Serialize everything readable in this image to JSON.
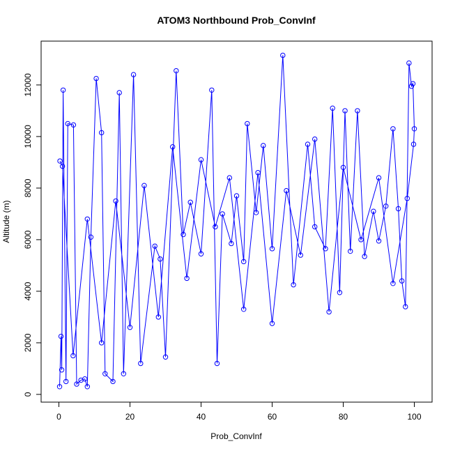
{
  "chart_data": {
    "type": "line",
    "title": "ATOM3 Northbound Prob_ConvInf",
    "xlabel": "Prob_ConvInf",
    "ylabel": "Altitude (m)",
    "xlim": [
      -5,
      105
    ],
    "ylim": [
      -300,
      13700
    ],
    "xticks": [
      0,
      20,
      40,
      60,
      80,
      100
    ],
    "yticks": [
      0,
      2000,
      4000,
      6000,
      8000,
      10000,
      12000
    ],
    "grid": false,
    "legend": "none",
    "series_color": "#0000ff",
    "series": [
      {
        "x": [
          0.2,
          0.6,
          0.8,
          1.2,
          2.0,
          2.5,
          4.1,
          5.0,
          6.2,
          7.3,
          8.0,
          9.0,
          10.5,
          12.0,
          13.0,
          15.2,
          17.0,
          18.2,
          21.0,
          23.0,
          27.0,
          28.5,
          30.0,
          33.0,
          35.0,
          37.0,
          40.0,
          43.0,
          44.5,
          46.0,
          48.5,
          50.0,
          52.0,
          53.0,
          55.5,
          57.5,
          60.0,
          63.0,
          66.0,
          70.0,
          72.0,
          75.0,
          77.0,
          79.0,
          80.5,
          82.0,
          84.0,
          86.0,
          88.5,
          90.0,
          92.0,
          94.0,
          95.5,
          96.5,
          97.5,
          98.5,
          99.2,
          99.6,
          100.0,
          99.8,
          98.0,
          94.0,
          90.0,
          85.0,
          80.0,
          76.0,
          72.0,
          68.0,
          64.0,
          60.0,
          56.0,
          52.0,
          48.0,
          44.0,
          40.0,
          36.0,
          32.0,
          28.0,
          24.0,
          20.0,
          16.0,
          12.0,
          8.0,
          4.0,
          1.0,
          0.3
        ],
        "y": [
          300,
          2250,
          950,
          11800,
          500,
          10500,
          10450,
          400,
          550,
          600,
          300,
          6100,
          12250,
          10150,
          800,
          500,
          11700,
          800,
          12400,
          1200,
          5750,
          5250,
          1450,
          12550,
          6200,
          7450,
          5450,
          11800,
          1200,
          7000,
          5850,
          7700,
          5150,
          10500,
          7050,
          9650,
          5650,
          13150,
          4250,
          9700,
          6500,
          5650,
          11100,
          3950,
          11000,
          5550,
          11000,
          5350,
          7100,
          5950,
          7300,
          10300,
          7200,
          4400,
          3400,
          12850,
          11950,
          12050,
          10300,
          9700,
          7600,
          4300,
          8400,
          6000,
          8800,
          3200,
          9900,
          5400,
          7900,
          2750,
          8600,
          3300,
          8400,
          6500,
          9100,
          4500,
          9600,
          3000,
          8100,
          2600,
          7500,
          2000,
          6800,
          1500,
          8850,
          9050
        ]
      }
    ]
  }
}
